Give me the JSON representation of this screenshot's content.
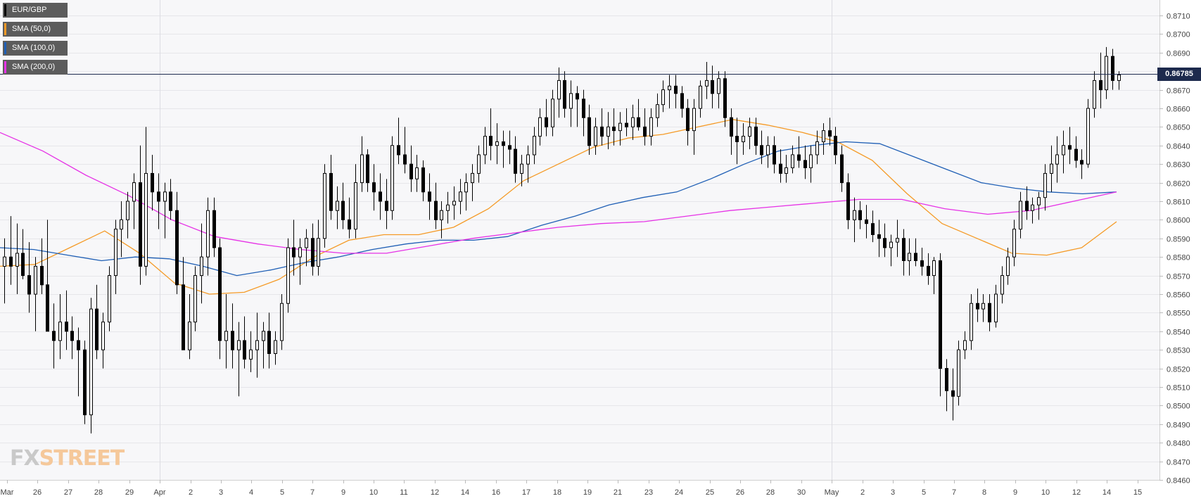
{
  "legend": [
    {
      "label": "EUR/GBP",
      "color": "#000000"
    },
    {
      "label": "SMA (50,0)",
      "color": "#f59a26"
    },
    {
      "label": "SMA (100,0)",
      "color": "#1f5fb5"
    },
    {
      "label": "SMA (200,0)",
      "color": "#e632e6"
    }
  ],
  "logo": {
    "fx": "FX",
    "street": "STREET"
  },
  "current_price": "0.86785",
  "chart_data": {
    "type": "candlestick",
    "symbol": "EUR/GBP",
    "ylim": [
      0.846,
      0.871
    ],
    "y_ticks": [
      "0.8700",
      "0.8690",
      "0.8680",
      "0.8670",
      "0.8660",
      "0.8650",
      "0.8640",
      "0.8630",
      "0.8620",
      "0.8610",
      "0.8600",
      "0.8590",
      "0.8580",
      "0.8570",
      "0.8560",
      "0.8550",
      "0.8540",
      "0.8530",
      "0.8520",
      "0.8510",
      "0.8500",
      "0.8490",
      "0.8480",
      "0.8470",
      "0.8460",
      "0.8710"
    ],
    "x_ticks": [
      "Mar",
      "26",
      "27",
      "28",
      "29",
      "Apr",
      "2",
      "3",
      "4",
      "5",
      "7",
      "9",
      "10",
      "11",
      "12",
      "14",
      "16",
      "17",
      "18",
      "19",
      "21",
      "23",
      "24",
      "25",
      "26",
      "28",
      "30",
      "May",
      "2",
      "3",
      "5",
      "7",
      "8",
      "9",
      "10",
      "12",
      "14",
      "15"
    ],
    "current_price": 0.86785,
    "grid": true,
    "legend_position": "top-left",
    "candles": [
      [
        0.8575,
        0.859,
        0.8555,
        0.858
      ],
      [
        0.858,
        0.8602,
        0.8565,
        0.8575
      ],
      [
        0.8575,
        0.8598,
        0.856,
        0.8582
      ],
      [
        0.8582,
        0.8595,
        0.8568,
        0.857
      ],
      [
        0.857,
        0.8588,
        0.855,
        0.856
      ],
      [
        0.856,
        0.858,
        0.854,
        0.8575
      ],
      [
        0.8575,
        0.859,
        0.856,
        0.8565
      ],
      [
        0.8565,
        0.86,
        0.854,
        0.854
      ],
      [
        0.854,
        0.8555,
        0.852,
        0.8535
      ],
      [
        0.8535,
        0.856,
        0.8525,
        0.8545
      ],
      [
        0.8545,
        0.8562,
        0.853,
        0.854
      ],
      [
        0.854,
        0.8548,
        0.8525,
        0.8535
      ],
      [
        0.8535,
        0.8542,
        0.8505,
        0.853
      ],
      [
        0.853,
        0.8535,
        0.849,
        0.8495
      ],
      [
        0.8495,
        0.8558,
        0.8485,
        0.8552
      ],
      [
        0.8552,
        0.8565,
        0.8525,
        0.853
      ],
      [
        0.853,
        0.855,
        0.852,
        0.8545
      ],
      [
        0.8545,
        0.8575,
        0.854,
        0.857
      ],
      [
        0.857,
        0.86,
        0.856,
        0.8595
      ],
      [
        0.8595,
        0.861,
        0.858,
        0.86
      ],
      [
        0.86,
        0.8615,
        0.859,
        0.861
      ],
      [
        0.861,
        0.8625,
        0.8595,
        0.862
      ],
      [
        0.862,
        0.864,
        0.8565,
        0.8575
      ],
      [
        0.8575,
        0.865,
        0.857,
        0.8625
      ],
      [
        0.8625,
        0.8635,
        0.8605,
        0.8615
      ],
      [
        0.8615,
        0.8625,
        0.8595,
        0.861
      ],
      [
        0.861,
        0.862,
        0.859,
        0.8615
      ],
      [
        0.8615,
        0.8622,
        0.86,
        0.8605
      ],
      [
        0.8605,
        0.8615,
        0.856,
        0.8565
      ],
      [
        0.8565,
        0.858,
        0.853,
        0.853
      ],
      [
        0.853,
        0.856,
        0.8525,
        0.8545
      ],
      [
        0.8545,
        0.8575,
        0.854,
        0.857
      ],
      [
        0.857,
        0.8598,
        0.8555,
        0.858
      ],
      [
        0.858,
        0.8612,
        0.857,
        0.8605
      ],
      [
        0.8605,
        0.8612,
        0.858,
        0.8585
      ],
      [
        0.8585,
        0.859,
        0.8525,
        0.8535
      ],
      [
        0.8535,
        0.856,
        0.852,
        0.854
      ],
      [
        0.854,
        0.8555,
        0.852,
        0.853
      ],
      [
        0.853,
        0.8545,
        0.8505,
        0.8535
      ],
      [
        0.8535,
        0.8548,
        0.852,
        0.8525
      ],
      [
        0.8525,
        0.854,
        0.8518,
        0.853
      ],
      [
        0.853,
        0.855,
        0.8515,
        0.8535
      ],
      [
        0.8535,
        0.8545,
        0.852,
        0.854
      ],
      [
        0.854,
        0.855,
        0.852,
        0.8528
      ],
      [
        0.8528,
        0.854,
        0.8522,
        0.8535
      ],
      [
        0.8535,
        0.856,
        0.853,
        0.8555
      ],
      [
        0.8555,
        0.859,
        0.855,
        0.8585
      ],
      [
        0.8585,
        0.86,
        0.857,
        0.858
      ],
      [
        0.858,
        0.859,
        0.8565,
        0.8585
      ],
      [
        0.8585,
        0.8595,
        0.8575,
        0.859
      ],
      [
        0.859,
        0.8598,
        0.857,
        0.8575
      ],
      [
        0.8575,
        0.86,
        0.857,
        0.859
      ],
      [
        0.859,
        0.863,
        0.8585,
        0.8625
      ],
      [
        0.8625,
        0.8635,
        0.86,
        0.8605
      ],
      [
        0.8605,
        0.8618,
        0.8595,
        0.861
      ],
      [
        0.861,
        0.862,
        0.8595,
        0.86
      ],
      [
        0.86,
        0.8612,
        0.859,
        0.8595
      ],
      [
        0.8595,
        0.863,
        0.859,
        0.862
      ],
      [
        0.862,
        0.8645,
        0.8615,
        0.8635
      ],
      [
        0.8635,
        0.8638,
        0.8615,
        0.862
      ],
      [
        0.862,
        0.863,
        0.8605,
        0.8615
      ],
      [
        0.8615,
        0.8625,
        0.86,
        0.861
      ],
      [
        0.861,
        0.8622,
        0.8595,
        0.8605
      ],
      [
        0.8605,
        0.8645,
        0.86,
        0.864
      ],
      [
        0.864,
        0.8655,
        0.863,
        0.8635
      ],
      [
        0.8635,
        0.865,
        0.8625,
        0.863
      ],
      [
        0.863,
        0.864,
        0.8615,
        0.8622
      ],
      [
        0.8622,
        0.8635,
        0.8615,
        0.8628
      ],
      [
        0.8628,
        0.8632,
        0.861,
        0.8615
      ],
      [
        0.8615,
        0.8625,
        0.86,
        0.861
      ],
      [
        0.861,
        0.862,
        0.8595,
        0.86
      ],
      [
        0.86,
        0.861,
        0.859,
        0.8605
      ],
      [
        0.8605,
        0.8615,
        0.8598,
        0.8608
      ],
      [
        0.8608,
        0.8618,
        0.86,
        0.861
      ],
      [
        0.861,
        0.8622,
        0.8603,
        0.8615
      ],
      [
        0.8615,
        0.8625,
        0.8605,
        0.862
      ],
      [
        0.862,
        0.863,
        0.861,
        0.8625
      ],
      [
        0.8625,
        0.864,
        0.862,
        0.8635
      ],
      [
        0.8635,
        0.865,
        0.863,
        0.8645
      ],
      [
        0.8645,
        0.866,
        0.8632,
        0.864
      ],
      [
        0.864,
        0.8652,
        0.863,
        0.8642
      ],
      [
        0.8642,
        0.8648,
        0.8628,
        0.864
      ],
      [
        0.864,
        0.8648,
        0.863,
        0.8638
      ],
      [
        0.8638,
        0.8645,
        0.862,
        0.8625
      ],
      [
        0.8625,
        0.8635,
        0.8618,
        0.863
      ],
      [
        0.863,
        0.864,
        0.862,
        0.8635
      ],
      [
        0.8635,
        0.865,
        0.863,
        0.8645
      ],
      [
        0.8645,
        0.866,
        0.864,
        0.8655
      ],
      [
        0.8655,
        0.8665,
        0.8645,
        0.865
      ],
      [
        0.865,
        0.867,
        0.8645,
        0.8665
      ],
      [
        0.8665,
        0.8682,
        0.8655,
        0.8675
      ],
      [
        0.8675,
        0.868,
        0.8655,
        0.866
      ],
      [
        0.866,
        0.8675,
        0.865,
        0.8668
      ],
      [
        0.8668,
        0.8672,
        0.865,
        0.8665
      ],
      [
        0.8665,
        0.867,
        0.8645,
        0.8655
      ],
      [
        0.8655,
        0.8662,
        0.8635,
        0.864
      ],
      [
        0.864,
        0.8655,
        0.8635,
        0.865
      ],
      [
        0.865,
        0.866,
        0.864,
        0.8645
      ],
      [
        0.8645,
        0.8658,
        0.8638,
        0.865
      ],
      [
        0.865,
        0.866,
        0.864,
        0.8648
      ],
      [
        0.8648,
        0.8658,
        0.864,
        0.8652
      ],
      [
        0.8652,
        0.866,
        0.8645,
        0.865
      ],
      [
        0.865,
        0.8662,
        0.8643,
        0.8655
      ],
      [
        0.8655,
        0.8665,
        0.8648,
        0.865
      ],
      [
        0.865,
        0.866,
        0.864,
        0.8645
      ],
      [
        0.8645,
        0.866,
        0.864,
        0.8655
      ],
      [
        0.8655,
        0.8668,
        0.865,
        0.8662
      ],
      [
        0.8662,
        0.8675,
        0.8658,
        0.867
      ],
      [
        0.867,
        0.8678,
        0.866,
        0.8672
      ],
      [
        0.8672,
        0.8678,
        0.866,
        0.8668
      ],
      [
        0.8668,
        0.8672,
        0.8655,
        0.866
      ],
      [
        0.866,
        0.8665,
        0.864,
        0.8648
      ],
      [
        0.8648,
        0.8665,
        0.8635,
        0.866
      ],
      [
        0.866,
        0.8675,
        0.8655,
        0.8672
      ],
      [
        0.8672,
        0.8685,
        0.8665,
        0.8675
      ],
      [
        0.8675,
        0.8683,
        0.866,
        0.8668
      ],
      [
        0.8668,
        0.868,
        0.866,
        0.8676
      ],
      [
        0.8676,
        0.868,
        0.865,
        0.8655
      ],
      [
        0.8655,
        0.866,
        0.8635,
        0.8645
      ],
      [
        0.8645,
        0.8655,
        0.863,
        0.8642
      ],
      [
        0.8642,
        0.8652,
        0.8635,
        0.8645
      ],
      [
        0.8645,
        0.8655,
        0.8638,
        0.865
      ],
      [
        0.865,
        0.8655,
        0.8635,
        0.864
      ],
      [
        0.864,
        0.8648,
        0.863,
        0.8635
      ],
      [
        0.8635,
        0.8645,
        0.8628,
        0.864
      ],
      [
        0.864,
        0.8645,
        0.8625,
        0.863
      ],
      [
        0.863,
        0.8638,
        0.862,
        0.8625
      ],
      [
        0.8625,
        0.8635,
        0.862,
        0.8628
      ],
      [
        0.8628,
        0.864,
        0.8625,
        0.8635
      ],
      [
        0.8635,
        0.8645,
        0.8628,
        0.8632
      ],
      [
        0.8632,
        0.864,
        0.8622,
        0.8628
      ],
      [
        0.8628,
        0.864,
        0.862,
        0.8635
      ],
      [
        0.8635,
        0.8648,
        0.863,
        0.8642
      ],
      [
        0.8642,
        0.8652,
        0.8635,
        0.8648
      ],
      [
        0.8648,
        0.8655,
        0.864,
        0.8645
      ],
      [
        0.8645,
        0.865,
        0.863,
        0.8635
      ],
      [
        0.8635,
        0.864,
        0.8615,
        0.862
      ],
      [
        0.862,
        0.8625,
        0.8595,
        0.86
      ],
      [
        0.86,
        0.8612,
        0.8588,
        0.8605
      ],
      [
        0.8605,
        0.861,
        0.8595,
        0.86
      ],
      [
        0.86,
        0.8608,
        0.859,
        0.8598
      ],
      [
        0.8598,
        0.8605,
        0.8588,
        0.8592
      ],
      [
        0.8592,
        0.86,
        0.858,
        0.859
      ],
      [
        0.859,
        0.8598,
        0.858,
        0.8585
      ],
      [
        0.8585,
        0.8592,
        0.8575,
        0.8588
      ],
      [
        0.8588,
        0.86,
        0.858,
        0.859
      ],
      [
        0.859,
        0.8595,
        0.857,
        0.8578
      ],
      [
        0.8578,
        0.859,
        0.857,
        0.8582
      ],
      [
        0.8582,
        0.859,
        0.8575,
        0.8578
      ],
      [
        0.8578,
        0.8585,
        0.857,
        0.8575
      ],
      [
        0.8575,
        0.8582,
        0.8565,
        0.857
      ],
      [
        0.857,
        0.858,
        0.856,
        0.8578
      ],
      [
        0.8578,
        0.8582,
        0.8505,
        0.852
      ],
      [
        0.852,
        0.8525,
        0.8497,
        0.8508
      ],
      [
        0.8508,
        0.852,
        0.8492,
        0.8505
      ],
      [
        0.8505,
        0.8535,
        0.85,
        0.853
      ],
      [
        0.853,
        0.854,
        0.8525,
        0.8535
      ],
      [
        0.8535,
        0.856,
        0.853,
        0.8555
      ],
      [
        0.8555,
        0.8563,
        0.8545,
        0.8552
      ],
      [
        0.8552,
        0.856,
        0.8545,
        0.8555
      ],
      [
        0.8555,
        0.856,
        0.854,
        0.8545
      ],
      [
        0.8545,
        0.8565,
        0.8542,
        0.856
      ],
      [
        0.856,
        0.8575,
        0.8555,
        0.857
      ],
      [
        0.857,
        0.8585,
        0.8565,
        0.858
      ],
      [
        0.858,
        0.86,
        0.8575,
        0.8595
      ],
      [
        0.8595,
        0.8615,
        0.859,
        0.861
      ],
      [
        0.861,
        0.8618,
        0.86,
        0.8605
      ],
      [
        0.8605,
        0.8612,
        0.8598,
        0.8608
      ],
      [
        0.8608,
        0.8615,
        0.86,
        0.8612
      ],
      [
        0.8612,
        0.863,
        0.8605,
        0.8625
      ],
      [
        0.8625,
        0.864,
        0.8615,
        0.863
      ],
      [
        0.863,
        0.8645,
        0.862,
        0.8635
      ],
      [
        0.8635,
        0.8648,
        0.8625,
        0.864
      ],
      [
        0.864,
        0.865,
        0.863,
        0.8638
      ],
      [
        0.8638,
        0.8645,
        0.8628,
        0.8632
      ],
      [
        0.8632,
        0.8638,
        0.8622,
        0.863
      ],
      [
        0.863,
        0.8665,
        0.8628,
        0.866
      ],
      [
        0.866,
        0.868,
        0.8655,
        0.8675
      ],
      [
        0.8675,
        0.869,
        0.866,
        0.867
      ],
      [
        0.867,
        0.8693,
        0.8665,
        0.8688
      ],
      [
        0.8688,
        0.8692,
        0.867,
        0.8675
      ],
      [
        0.8675,
        0.868,
        0.867,
        0.8678
      ]
    ],
    "series": [
      {
        "name": "SMA (50,0)",
        "color": "#f59a26",
        "values": [
          0.8575,
          0.8576,
          0.8585,
          0.8594,
          0.8582,
          0.8566,
          0.856,
          0.8561,
          0.8568,
          0.858,
          0.8589,
          0.8592,
          0.8592,
          0.8596,
          0.8606,
          0.8621,
          0.863,
          0.8639,
          0.8644,
          0.8646,
          0.865,
          0.8654,
          0.8651,
          0.8647,
          0.8642,
          0.8632,
          0.8614,
          0.8598,
          0.859,
          0.8582,
          0.8581,
          0.8585,
          0.8599
        ]
      },
      {
        "name": "SMA (100,0)",
        "color": "#1f5fb5",
        "values": [
          0.8585,
          0.8584,
          0.8581,
          0.8578,
          0.858,
          0.8579,
          0.8575,
          0.857,
          0.8573,
          0.8577,
          0.858,
          0.8584,
          0.8587,
          0.8589,
          0.8589,
          0.8591,
          0.8597,
          0.8602,
          0.8608,
          0.8612,
          0.8615,
          0.8622,
          0.863,
          0.8637,
          0.864,
          0.8642,
          0.8641,
          0.8634,
          0.8627,
          0.862,
          0.8617,
          0.8615,
          0.8614,
          0.8615
        ]
      },
      {
        "name": "SMA (200,0)",
        "color": "#e632e6",
        "values": [
          0.8647,
          0.8637,
          0.8624,
          0.8613,
          0.86,
          0.8591,
          0.8587,
          0.8584,
          0.8582,
          0.8582,
          0.8586,
          0.859,
          0.8593,
          0.8596,
          0.8598,
          0.8599,
          0.8602,
          0.8605,
          0.8607,
          0.8609,
          0.8611,
          0.8611,
          0.8606,
          0.8603,
          0.8605,
          0.861,
          0.8615
        ]
      }
    ]
  }
}
